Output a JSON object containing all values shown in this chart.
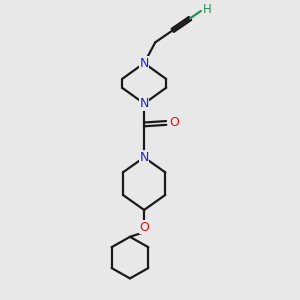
{
  "bg_color": "#e8e8e8",
  "bond_color": "#1a1a1a",
  "N_color": "#2020cc",
  "O_color": "#dd1111",
  "H_color": "#2e8b57",
  "line_width": 1.6,
  "figsize": [
    3.0,
    3.0
  ],
  "dpi": 100,
  "xlim": [
    0,
    10
  ],
  "ylim": [
    0,
    10
  ]
}
